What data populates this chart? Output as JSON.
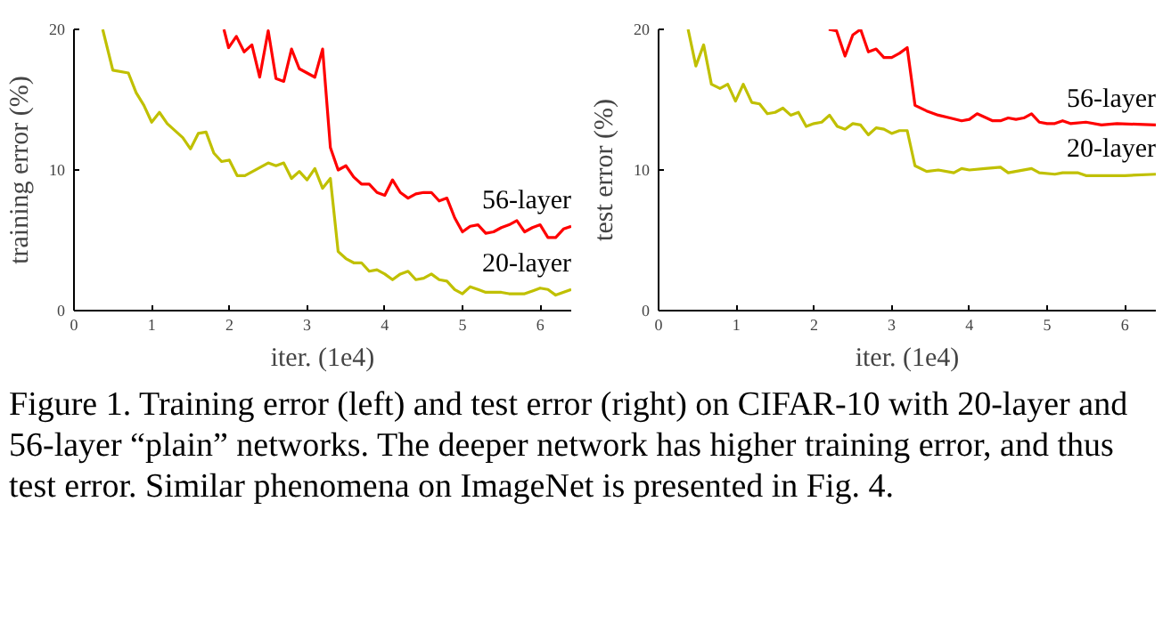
{
  "chart_data": [
    {
      "type": "line",
      "xlabel": "iter. (1e4)",
      "ylabel": "training error (%)",
      "xlim": [
        0,
        6.4
      ],
      "ylim": [
        0,
        20
      ],
      "xticks": [
        0,
        1,
        2,
        3,
        4,
        5,
        6
      ],
      "yticks": [
        0,
        10,
        20
      ],
      "grid": false,
      "legend": false,
      "series": [
        {
          "name": "56-layer",
          "color": "#ff0000",
          "x": [
            1.93,
            1.99,
            2.09,
            2.19,
            2.29,
            2.39,
            2.5,
            2.6,
            2.7,
            2.8,
            2.9,
            3.0,
            3.1,
            3.2,
            3.3,
            3.4,
            3.5,
            3.6,
            3.7,
            3.8,
            3.9,
            4.0,
            4.1,
            4.2,
            4.3,
            4.4,
            4.5,
            4.6,
            4.7,
            4.8,
            4.9,
            5.0,
            5.1,
            5.2,
            5.3,
            5.4,
            5.5,
            5.6,
            5.7,
            5.8,
            5.9,
            6.0,
            6.1,
            6.2,
            6.3,
            6.4
          ],
          "values": [
            20,
            18.7,
            19.5,
            18.4,
            18.9,
            16.6,
            19.9,
            16.5,
            16.3,
            18.6,
            17.2,
            16.9,
            16.6,
            18.6,
            11.6,
            10.0,
            10.3,
            9.5,
            9.0,
            9.0,
            8.4,
            8.2,
            9.3,
            8.4,
            8.0,
            8.3,
            8.4,
            8.4,
            7.8,
            8.0,
            6.6,
            5.6,
            6.0,
            6.1,
            5.5,
            5.6,
            5.9,
            6.1,
            6.4,
            5.6,
            5.9,
            6.1,
            5.2,
            5.2,
            5.8,
            6.0
          ]
        },
        {
          "name": "20-layer",
          "color": "#c0c000",
          "x": [
            0.37,
            0.5,
            0.7,
            0.8,
            0.9,
            1.0,
            1.1,
            1.2,
            1.4,
            1.5,
            1.6,
            1.7,
            1.8,
            1.9,
            2.0,
            2.1,
            2.2,
            2.4,
            2.5,
            2.6,
            2.7,
            2.8,
            2.9,
            3.0,
            3.1,
            3.2,
            3.3,
            3.4,
            3.5,
            3.6,
            3.7,
            3.8,
            3.9,
            4.0,
            4.1,
            4.2,
            4.3,
            4.4,
            4.5,
            4.6,
            4.7,
            4.8,
            4.9,
            5.0,
            5.1,
            5.2,
            5.3,
            5.5,
            5.6,
            5.8,
            5.9,
            6.0,
            6.1,
            6.2,
            6.4
          ],
          "values": [
            20,
            17.1,
            16.9,
            15.5,
            14.6,
            13.4,
            14.1,
            13.3,
            12.3,
            11.5,
            12.6,
            12.7,
            11.2,
            10.6,
            10.7,
            9.6,
            9.6,
            10.2,
            10.5,
            10.3,
            10.5,
            9.4,
            9.9,
            9.3,
            10.1,
            8.7,
            9.4,
            4.2,
            3.7,
            3.4,
            3.4,
            2.8,
            2.9,
            2.6,
            2.2,
            2.6,
            2.8,
            2.2,
            2.3,
            2.6,
            2.2,
            2.1,
            1.5,
            1.2,
            1.7,
            1.5,
            1.3,
            1.3,
            1.2,
            1.2,
            1.4,
            1.6,
            1.5,
            1.1,
            1.5
          ]
        }
      ],
      "annotations": [
        "Figure 1. Training error (left) and test error (right) on CIFAR-10 with 20-layer and 56-layer “plain” networks. The deeper network has higher training error, and thus test error. Similar phenomena on ImageNet is presented in Fig. 4."
      ]
    },
    {
      "type": "line",
      "xlabel": "iter. (1e4)",
      "ylabel": "test error (%)",
      "xlim": [
        0,
        6.4
      ],
      "ylim": [
        0,
        20
      ],
      "xticks": [
        0,
        1,
        2,
        3,
        4,
        5,
        6
      ],
      "yticks": [
        0,
        10,
        20
      ],
      "grid": false,
      "legend": false,
      "series": [
        {
          "name": "56-layer",
          "color": "#ff0000",
          "x": [
            2.19,
            2.29,
            2.4,
            2.5,
            2.6,
            2.7,
            2.8,
            2.9,
            3.0,
            3.1,
            3.2,
            3.3,
            3.45,
            3.6,
            3.75,
            3.9,
            4.0,
            4.1,
            4.3,
            4.4,
            4.5,
            4.6,
            4.7,
            4.8,
            4.9,
            5.0,
            5.1,
            5.2,
            5.3,
            5.5,
            5.7,
            5.9,
            6.4
          ],
          "values": [
            20,
            19.9,
            18.1,
            19.6,
            20,
            18.4,
            18.6,
            18.0,
            18.0,
            18.3,
            18.7,
            14.6,
            14.2,
            13.9,
            13.7,
            13.5,
            13.6,
            14.0,
            13.5,
            13.5,
            13.7,
            13.6,
            13.7,
            14.0,
            13.4,
            13.3,
            13.3,
            13.5,
            13.3,
            13.4,
            13.2,
            13.3,
            13.2
          ]
        },
        {
          "name": "20-layer",
          "color": "#c0c000",
          "x": [
            0.38,
            0.48,
            0.58,
            0.68,
            0.79,
            0.89,
            0.99,
            1.09,
            1.2,
            1.3,
            1.4,
            1.5,
            1.6,
            1.7,
            1.8,
            1.9,
            2.0,
            2.1,
            2.2,
            2.3,
            2.4,
            2.5,
            2.6,
            2.7,
            2.8,
            2.9,
            3.0,
            3.1,
            3.2,
            3.3,
            3.45,
            3.6,
            3.8,
            3.9,
            4.0,
            4.2,
            4.4,
            4.5,
            4.8,
            4.9,
            5.1,
            5.2,
            5.4,
            5.5,
            6.0,
            6.4
          ],
          "values": [
            20,
            17.4,
            18.9,
            16.1,
            15.8,
            16.1,
            14.9,
            16.1,
            14.8,
            14.7,
            14.0,
            14.1,
            14.4,
            13.9,
            14.1,
            13.1,
            13.3,
            13.4,
            13.9,
            13.1,
            12.9,
            13.3,
            13.2,
            12.5,
            13.0,
            12.9,
            12.6,
            12.8,
            12.8,
            10.3,
            9.9,
            10.0,
            9.8,
            10.1,
            10.0,
            10.1,
            10.2,
            9.8,
            10.1,
            9.8,
            9.7,
            9.8,
            9.8,
            9.6,
            9.6,
            9.7
          ]
        }
      ]
    }
  ]
}
